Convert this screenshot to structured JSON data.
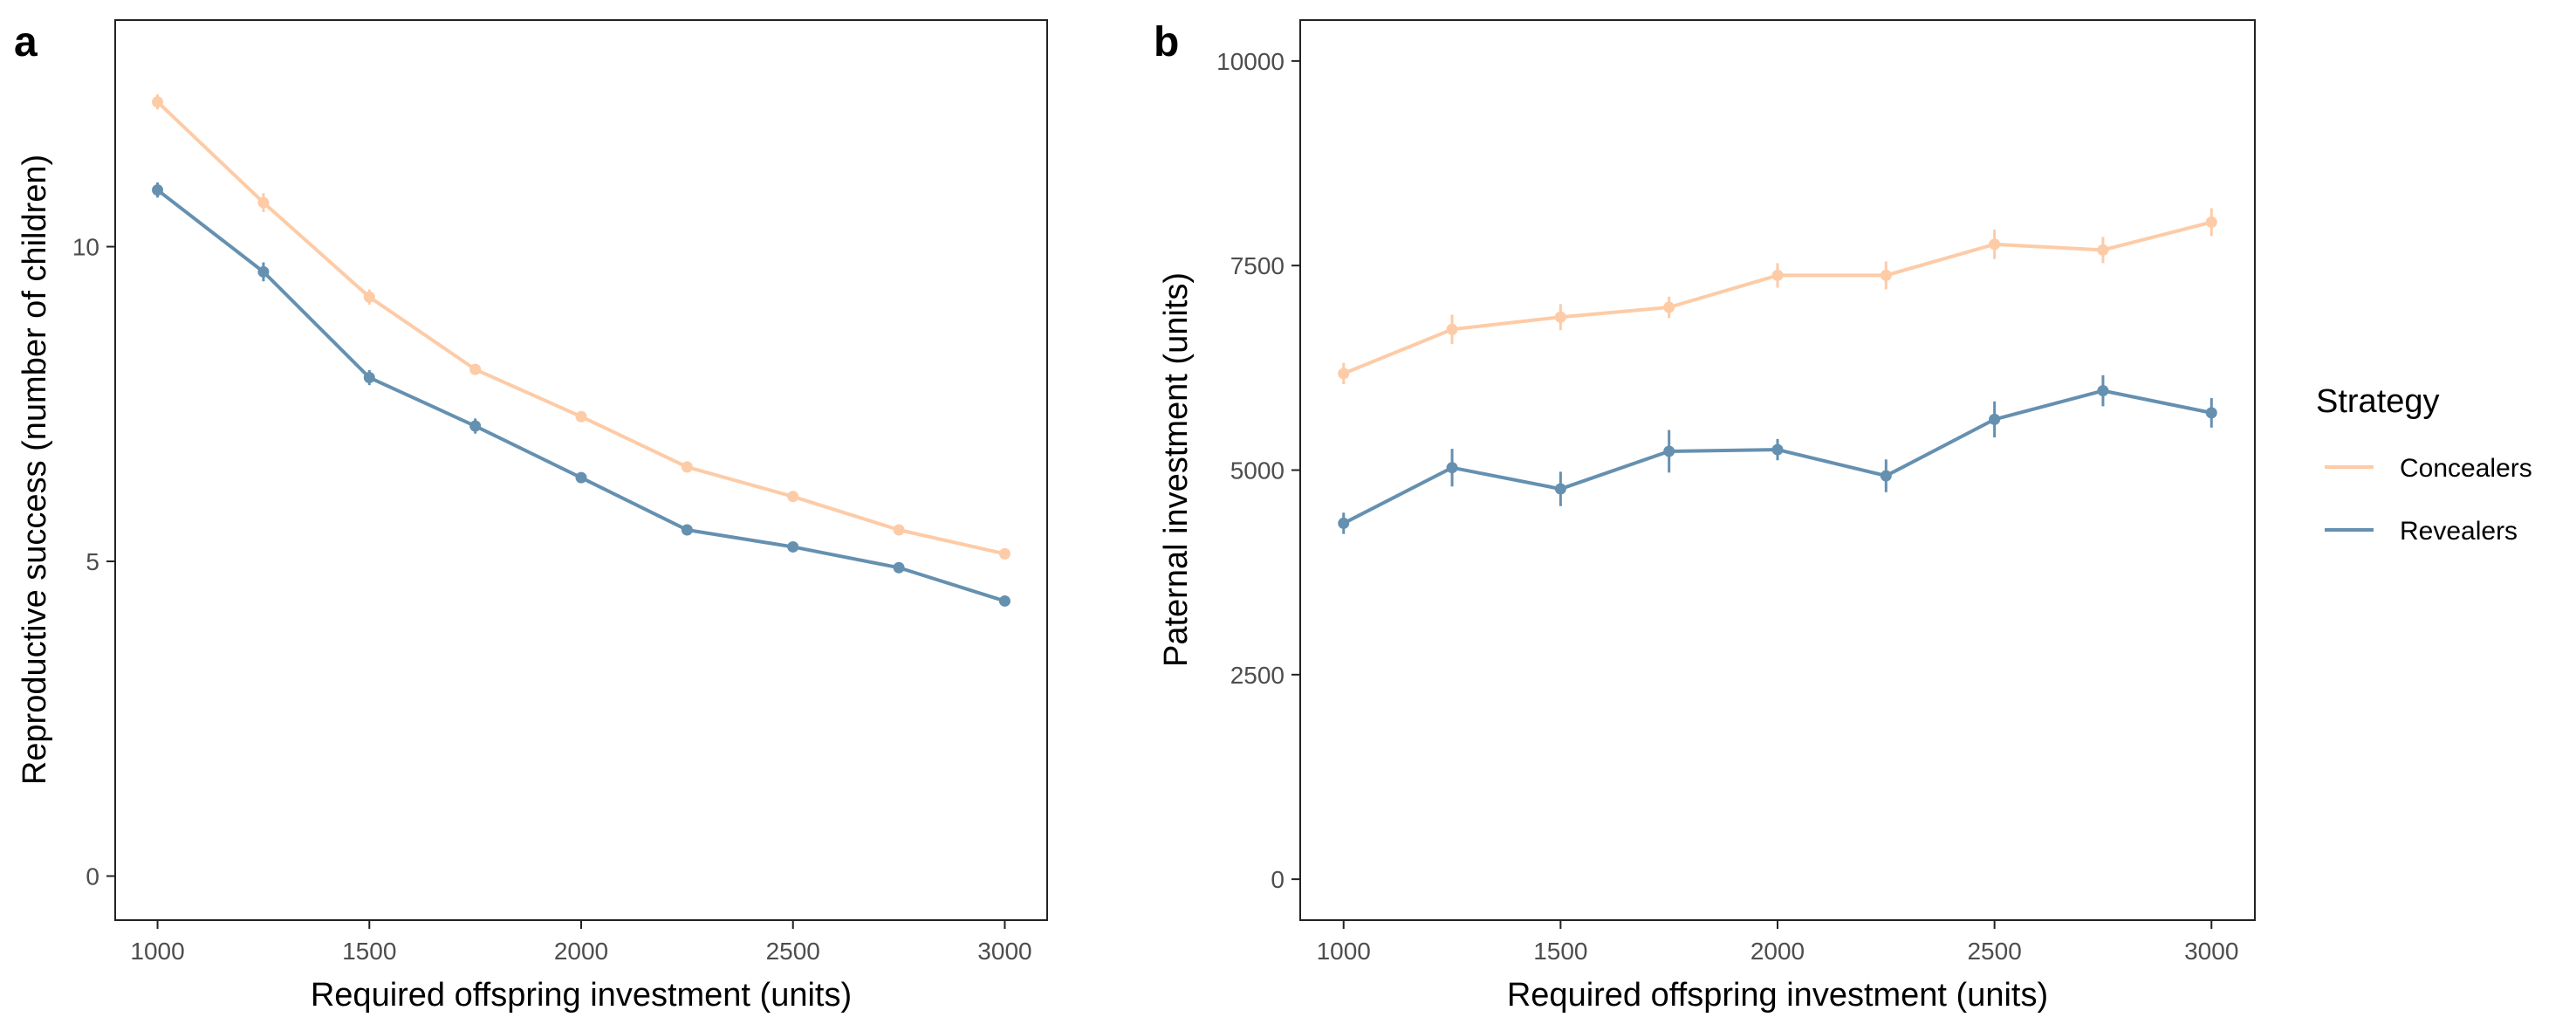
{
  "panels": [
    "a",
    "b"
  ],
  "legend": {
    "title": "Strategy",
    "items": [
      "Concealers",
      "Revealers"
    ]
  },
  "colors": {
    "concealers": "#FDCBA6",
    "revealers": "#6590B0",
    "axis": "#222222",
    "tick_text": "#4D4D4D"
  },
  "chart_data": [
    {
      "panel": "a",
      "type": "line",
      "xlabel": "Required offspring investment (units)",
      "ylabel": "Reproductive success (number of children)",
      "x": [
        1000,
        1250,
        1500,
        1750,
        2000,
        2250,
        2500,
        2750,
        3000
      ],
      "xlim": [
        900,
        3100
      ],
      "ylim": [
        -0.7,
        13.6
      ],
      "xticks": [
        1000,
        1500,
        2000,
        2500,
        3000
      ],
      "yticks": [
        0,
        5,
        10
      ],
      "grid": false,
      "legend": "right",
      "series": [
        {
          "name": "Concealers",
          "values": [
            12.3,
            10.7,
            9.2,
            8.05,
            7.3,
            6.5,
            6.03,
            5.5,
            5.12
          ],
          "err": [
            0.12,
            0.15,
            0.12,
            0.08,
            0.06,
            0.05,
            0.05,
            0.04,
            0.04
          ]
        },
        {
          "name": "Revealers",
          "values": [
            10.9,
            9.6,
            7.92,
            7.15,
            6.33,
            5.5,
            5.23,
            4.9,
            4.37
          ],
          "err": [
            0.12,
            0.15,
            0.12,
            0.12,
            0.06,
            0.06,
            0.06,
            0.05,
            0.05
          ]
        }
      ]
    },
    {
      "panel": "b",
      "type": "line",
      "xlabel": "Required offspring investment (units)",
      "ylabel": "Paternal investment (units)",
      "x": [
        1000,
        1250,
        1500,
        1750,
        2000,
        2250,
        2500,
        2750,
        3000
      ],
      "xlim": [
        900,
        3100
      ],
      "ylim": [
        -500,
        10500
      ],
      "xticks": [
        1000,
        1500,
        2000,
        2500,
        3000
      ],
      "yticks": [
        0,
        2500,
        5000,
        7500,
        10000
      ],
      "grid": false,
      "legend": "right",
      "series": [
        {
          "name": "Concealers",
          "values": [
            6180,
            6720,
            6870,
            6990,
            7380,
            7380,
            7760,
            7690,
            8030
          ],
          "err": [
            130,
            180,
            160,
            130,
            150,
            170,
            180,
            160,
            170
          ]
        },
        {
          "name": "Revealers",
          "values": [
            4350,
            5030,
            4770,
            5230,
            5250,
            4930,
            5620,
            5970,
            5700
          ],
          "err": [
            130,
            230,
            210,
            260,
            130,
            200,
            220,
            190,
            180
          ]
        }
      ]
    }
  ]
}
